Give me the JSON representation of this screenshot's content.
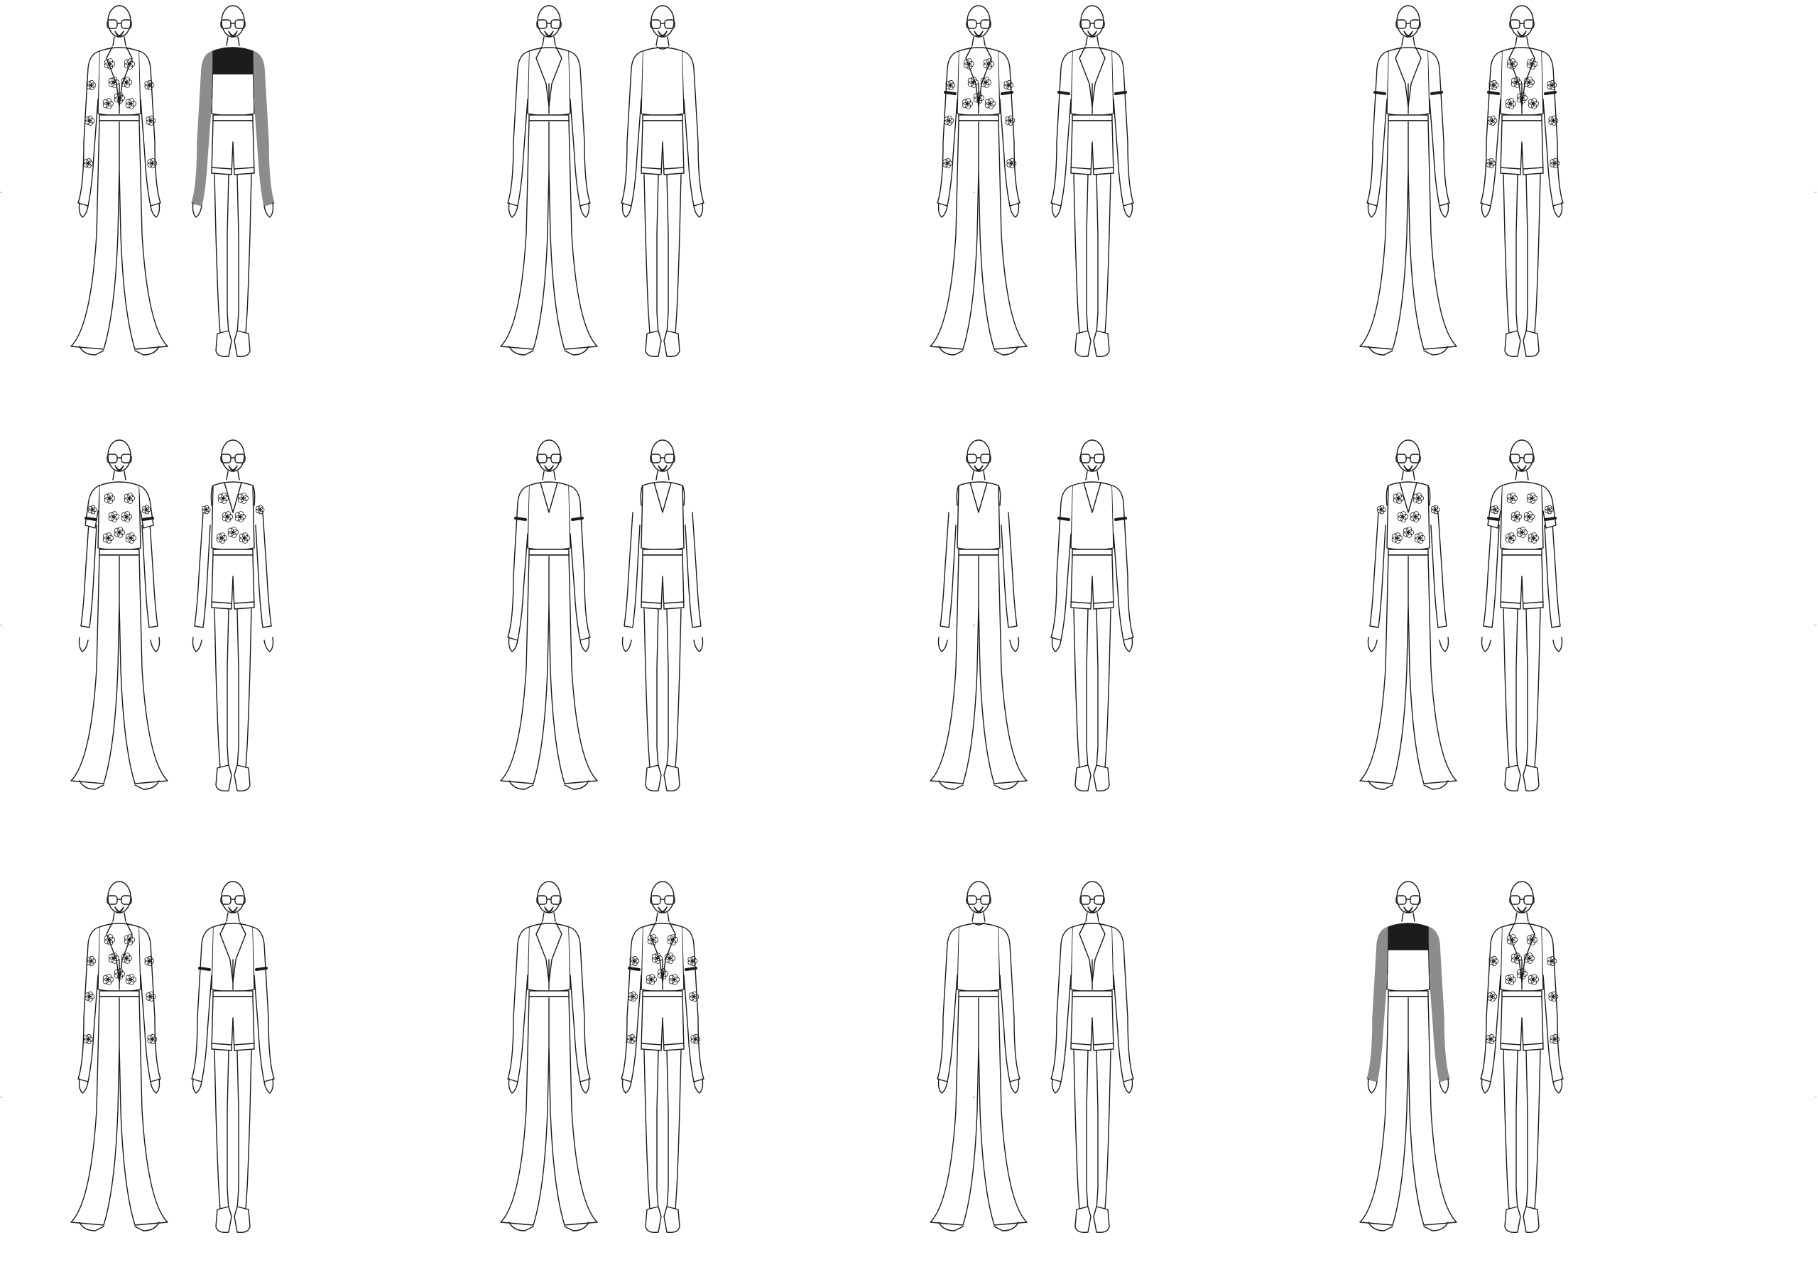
{
  "sheet": {
    "panels": [
      {
        "id": 1,
        "left": {
          "top": "jacket",
          "pattern": "floral",
          "band": false,
          "shade": false
        },
        "right": {
          "top": "raglan",
          "pattern": "plain",
          "band": false,
          "shade": true
        }
      },
      {
        "id": 2,
        "left": {
          "top": "jacket",
          "pattern": "plain",
          "band": false,
          "shade": false
        },
        "right": {
          "top": "longsleeve",
          "pattern": "plain",
          "band": false,
          "shade": false
        }
      },
      {
        "id": 3,
        "left": {
          "top": "jacket",
          "pattern": "floral",
          "band": true,
          "shade": false
        },
        "right": {
          "top": "jacket",
          "pattern": "plain",
          "band": true,
          "shade": false
        }
      },
      {
        "id": 4,
        "left": {
          "top": "jacket",
          "pattern": "plain",
          "band": true,
          "shade": false
        },
        "right": {
          "top": "jacket",
          "pattern": "floral",
          "band": true,
          "shade": false
        }
      },
      {
        "id": 5,
        "left": {
          "top": "shortsleeve",
          "pattern": "floral",
          "band": true,
          "shade": false
        },
        "right": {
          "top": "tank",
          "pattern": "floral",
          "band": false,
          "shade": false
        }
      },
      {
        "id": 6,
        "left": {
          "top": "vneck",
          "pattern": "plain",
          "band": true,
          "shade": false
        },
        "right": {
          "top": "tank",
          "pattern": "plain",
          "band": false,
          "shade": false
        }
      },
      {
        "id": 7,
        "left": {
          "top": "tank",
          "pattern": "plain",
          "band": false,
          "shade": false
        },
        "right": {
          "top": "vneck",
          "pattern": "plain",
          "band": true,
          "shade": false
        }
      },
      {
        "id": 8,
        "left": {
          "top": "tank",
          "pattern": "floral",
          "band": false,
          "shade": false
        },
        "right": {
          "top": "shortsleeve",
          "pattern": "floral",
          "band": true,
          "shade": false
        }
      },
      {
        "id": 9,
        "left": {
          "top": "jacket",
          "pattern": "floral",
          "band": false,
          "shade": false
        },
        "right": {
          "top": "jacket",
          "pattern": "plain",
          "band": true,
          "shade": false
        }
      },
      {
        "id": 10,
        "left": {
          "top": "jacket",
          "pattern": "plain",
          "band": false,
          "shade": false
        },
        "right": {
          "top": "jacket",
          "pattern": "floral",
          "band": true,
          "shade": false
        }
      },
      {
        "id": 11,
        "left": {
          "top": "longsleeve",
          "pattern": "plain",
          "band": false,
          "shade": false
        },
        "right": {
          "top": "jacket",
          "pattern": "plain",
          "band": false,
          "shade": false
        }
      },
      {
        "id": 12,
        "left": {
          "top": "raglan",
          "pattern": "plain",
          "band": false,
          "shade": true
        },
        "right": {
          "top": "jacket",
          "pattern": "floral",
          "band": false,
          "shade": false
        }
      }
    ],
    "colors": {
      "line": "#1a1a1a",
      "yoke": "#1c1c1c",
      "sleeve": "#8c8c8c",
      "fill": "#ffffff"
    }
  }
}
